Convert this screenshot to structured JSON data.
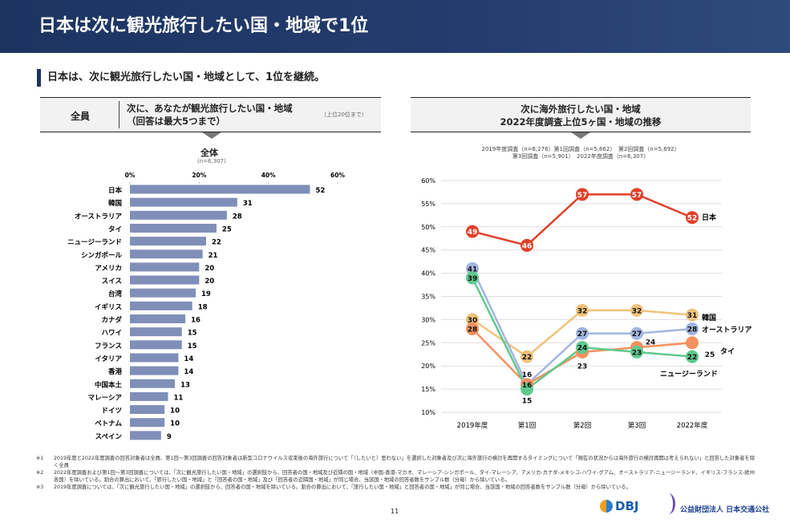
{
  "header": {
    "title": "日本は次に観光旅行したい国・地域で1位"
  },
  "subtitle": "日本は、次に観光旅行したい国・地域として、1位を継続。",
  "left": {
    "segment": "全員",
    "question_line1": "次に、あなたが観光旅行したい国・地域",
    "question_line2": "（回答は最大5つまで）",
    "note": "（上位20位まで）",
    "group": "全体",
    "n": "(n=6,307)"
  },
  "right": {
    "title_line1": "次に海外旅行したい国・地域",
    "title_line2": "2022年度調査上位5ヶ国・地域の推移",
    "legend_line1": "2019年度調査（n=6,276）第1回調査（n=5,662）　第2回調査（n=5,692）",
    "legend_line2": "第3回調査（n=5,901）　2022年度調査（n=6,307）"
  },
  "chart_data": [
    {
      "type": "bar",
      "orientation": "horizontal",
      "xlim": [
        0,
        60
      ],
      "ticks": [
        "0%",
        "20%",
        "40%",
        "60%"
      ],
      "color": "#7f8fb8",
      "categories": [
        "日本",
        "韓国",
        "オーストラリア",
        "タイ",
        "ニュージーランド",
        "シンガポール",
        "アメリカ",
        "スイス",
        "台湾",
        "イギリス",
        "カナダ",
        "ハワイ",
        "フランス",
        "イタリア",
        "香港",
        "中国本土",
        "マレーシア",
        "ドイツ",
        "ベトナム",
        "スペイン"
      ],
      "values": [
        52,
        31,
        28,
        25,
        22,
        21,
        20,
        20,
        19,
        18,
        16,
        15,
        15,
        14,
        14,
        13,
        11,
        10,
        10,
        9
      ]
    },
    {
      "type": "line",
      "categories": [
        "2019年度",
        "第1回",
        "第2回",
        "第3回",
        "2022年度"
      ],
      "ylim": [
        10,
        60
      ],
      "yticks": [
        "10%",
        "15%",
        "20%",
        "25%",
        "30%",
        "35%",
        "40%",
        "45%",
        "50%",
        "55%",
        "60%"
      ],
      "grid": true,
      "series": [
        {
          "name": "日本",
          "color": "#e0402a",
          "values": [
            49,
            46,
            57,
            57,
            52
          ]
        },
        {
          "name": "韓国",
          "color": "#f0c27b",
          "values": [
            30,
            22,
            32,
            32,
            31
          ]
        },
        {
          "name": "オーストラリア",
          "color": "#a3b5e0",
          "values": [
            41,
            16,
            27,
            27,
            28
          ]
        },
        {
          "name": "タイ",
          "color": "#f4915f",
          "values": [
            28,
            16,
            23,
            24,
            25
          ]
        },
        {
          "name": "ニュージーランド",
          "color": "#5fc98d",
          "values": [
            39,
            15,
            24,
            23,
            22
          ]
        }
      ]
    }
  ],
  "footnotes": [
    {
      "mark": "※1",
      "text": "2019年度と2022年度調査の回答対象者は全員、第1回～第3回調査の回答対象者は新型コロナウイルス収束後の海外旅行について「（したいと）思わない」を選択した対象者及び次に海外旅行の検討を再開するタイミングについて「現在の状況からは海外旅行の検討再開は考えられない」と回答した対象者を除く全員"
    },
    {
      "mark": "※2",
      "text": "2022年度調査および第1回～第3回調査については、「次に観光旅行したい国・地域」の選択肢から、回答者の国・地域及び近隣の国・地域（中国-香港-マカオ、マレーシア-シンガポール、タイ-マレーシア、アメリカ-カナダ-メキシコ-ハワイ-グアム、オーストラリア-ニュージーランド、イギリス-フランス-欧州各国）を除いている。割合の算出において、「旅行したい国・地域」と「回答者の国・地域」及び「回答者の近隣国・地域」が同じ場合、当該国・地域の回答者数をサンプル数（分母）から除いている。"
    },
    {
      "mark": "※3",
      "text": "2019年度調査については、「次に観光旅行したい国・地域」の選択肢から、回答者の国・地域を除いている。割合の算出において、「旅行したい国・地域」と回答者の国・地域」が同じ場合、当該国・地域の回答者数をサンプル数（分母）から除いている。"
    }
  ],
  "page_number": "11",
  "logos": [
    "DBJ",
    "公益財団法人 日本交通公社"
  ]
}
